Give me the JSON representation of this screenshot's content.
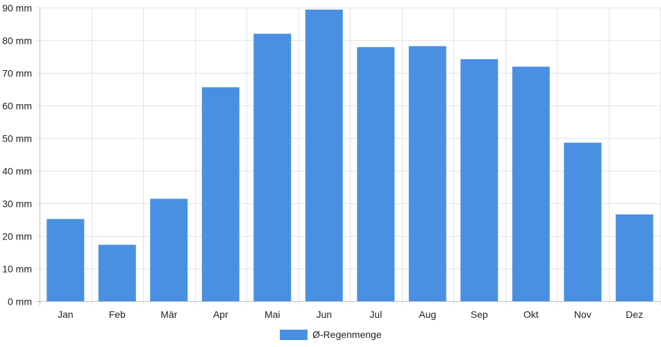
{
  "chart_data": {
    "type": "bar",
    "categories": [
      "Jan",
      "Feb",
      "Mär",
      "Apr",
      "Mai",
      "Jun",
      "Jul",
      "Aug",
      "Sep",
      "Okt",
      "Nov",
      "Dez"
    ],
    "series": [
      {
        "name": "Ø-Regenmenge",
        "values": [
          25.2,
          17.3,
          31.4,
          65.6,
          82.0,
          89.4,
          77.9,
          78.2,
          74.2,
          71.9,
          48.6,
          26.6
        ],
        "color": "#4a90e2"
      }
    ],
    "ylim": [
      0,
      90
    ],
    "yticks": [
      0,
      10,
      20,
      30,
      40,
      50,
      60,
      70,
      80,
      90
    ],
    "y_unit": "mm",
    "grid": true,
    "legend_position": "bottom"
  }
}
